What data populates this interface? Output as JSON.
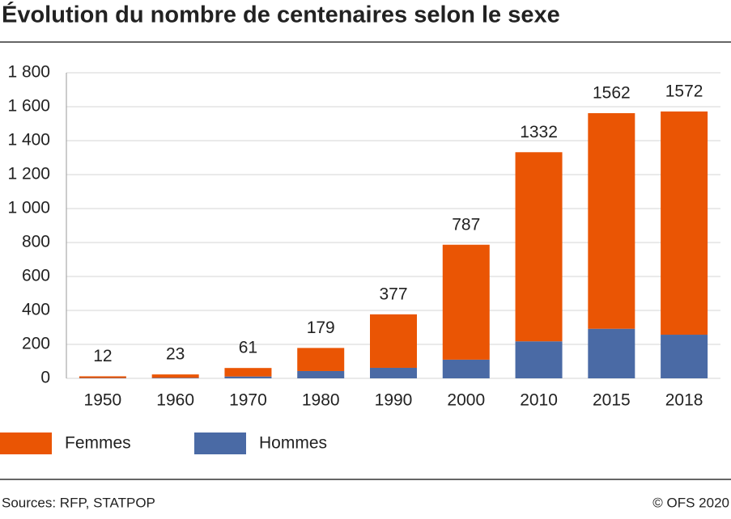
{
  "chart_data": {
    "type": "stacked-bar",
    "title": "Évolution du nombre de centenaires selon le sexe",
    "categories": [
      "1950",
      "1960",
      "1970",
      "1980",
      "1990",
      "2000",
      "2010",
      "2015",
      "2018"
    ],
    "series": [
      {
        "name": "Femmes",
        "color": "#ea5504",
        "values": [
          10,
          20,
          50,
          136,
          315,
          677,
          1114,
          1270,
          1315
        ]
      },
      {
        "name": "Hommes",
        "color": "#4a6aa5",
        "values": [
          2,
          3,
          11,
          43,
          62,
          110,
          218,
          292,
          257
        ]
      }
    ],
    "totals": [
      12,
      23,
      61,
      179,
      377,
      787,
      1332,
      1562,
      1572
    ],
    "ylim": [
      0,
      1800
    ],
    "yticks": [
      0,
      200,
      400,
      600,
      800,
      {
        "value": 1000,
        "label": "1 000"
      },
      {
        "value": 1200,
        "label": "1 200"
      },
      {
        "value": 1400,
        "label": "1 400"
      },
      {
        "value": 1600,
        "label": "1 600"
      },
      {
        "value": 1800,
        "label": "1 800"
      }
    ],
    "grid": true,
    "source": "Sources: RFP, STATPOP",
    "copyright": "© OFS 2020"
  }
}
